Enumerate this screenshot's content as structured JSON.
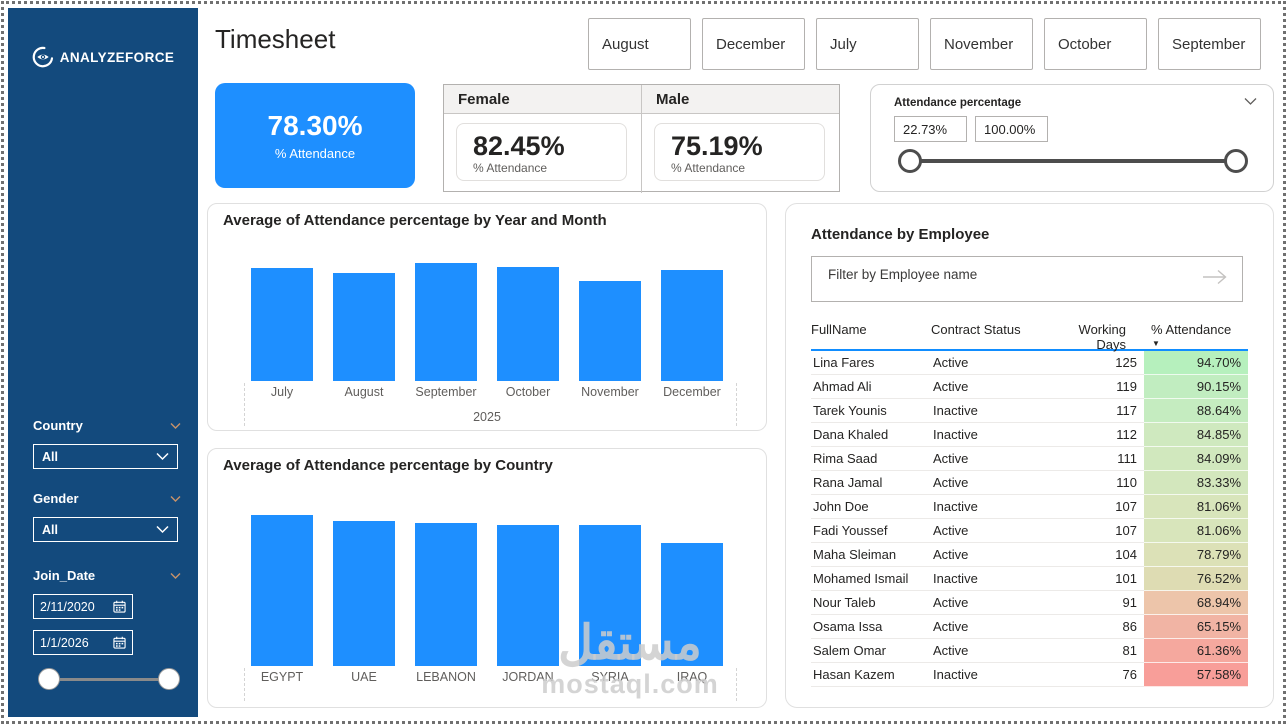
{
  "page": {
    "title": "Timesheet"
  },
  "brand": {
    "name": "ANALYZEFORCE"
  },
  "watermark": {
    "arabic": "مستقل",
    "latin": "mostaql.com"
  },
  "month_buttons": [
    "August",
    "December",
    "July",
    "November",
    "October",
    "September"
  ],
  "kpi": {
    "value": "78.30%",
    "label": "% Attendance"
  },
  "gender_cards": {
    "female": {
      "header": "Female",
      "value": "82.45%",
      "label": "% Attendance"
    },
    "male": {
      "header": "Male",
      "value": "75.19%",
      "label": "% Attendance"
    }
  },
  "attendance_slicer": {
    "title": "Attendance percentage",
    "min_value": "22.73%",
    "max_value": "100.00%"
  },
  "sidebar": {
    "country": {
      "label": "Country",
      "value": "All"
    },
    "gender": {
      "label": "Gender",
      "value": "All"
    },
    "join_date": {
      "label": "Join_Date",
      "start": "2/11/2020",
      "end": "1/1/2026"
    }
  },
  "employee_panel": {
    "title": "Attendance by Employee",
    "filter_placeholder": "Filter by Employee name",
    "columns": [
      "FullName",
      "Contract Status",
      "Working Days",
      "% Attendance"
    ],
    "sort_column": "% Attendance",
    "sort_direction": "desc",
    "rows": [
      {
        "name": "Lina Fares",
        "status": "Active",
        "days": "125",
        "attendance": "94.70%",
        "color": "#b6f0bd"
      },
      {
        "name": "Ahmad Ali",
        "status": "Active",
        "days": "119",
        "attendance": "90.15%",
        "color": "#c1edc0"
      },
      {
        "name": "Tarek Younis",
        "status": "Inactive",
        "days": "117",
        "attendance": "88.64%",
        "color": "#c5ecc0"
      },
      {
        "name": "Dana Khaled",
        "status": "Inactive",
        "days": "112",
        "attendance": "84.85%",
        "color": "#cfe9bf"
      },
      {
        "name": "Rima Saad",
        "status": "Active",
        "days": "111",
        "attendance": "84.09%",
        "color": "#d1e8be"
      },
      {
        "name": "Rana Jamal",
        "status": "Active",
        "days": "110",
        "attendance": "83.33%",
        "color": "#d3e7bd"
      },
      {
        "name": "John Doe",
        "status": "Inactive",
        "days": "107",
        "attendance": "81.06%",
        "color": "#d8e5bb"
      },
      {
        "name": "Fadi Youssef",
        "status": "Active",
        "days": "107",
        "attendance": "81.06%",
        "color": "#d8e5bb"
      },
      {
        "name": "Maha Sleiman",
        "status": "Active",
        "days": "104",
        "attendance": "78.79%",
        "color": "#dce1b7"
      },
      {
        "name": "Mohamed Ismail",
        "status": "Inactive",
        "days": "101",
        "attendance": "76.52%",
        "color": "#dedcb3"
      },
      {
        "name": "Nour Taleb",
        "status": "Active",
        "days": "91",
        "attendance": "68.94%",
        "color": "#edc5aa"
      },
      {
        "name": "Osama Issa",
        "status": "Active",
        "days": "86",
        "attendance": "65.15%",
        "color": "#f1b4a4"
      },
      {
        "name": "Salem Omar",
        "status": "Active",
        "days": "81",
        "attendance": "61.36%",
        "color": "#f5a89e"
      },
      {
        "name": "Hasan Kazem",
        "status": "Inactive",
        "days": "76",
        "attendance": "57.58%",
        "color": "#f89e99"
      }
    ]
  },
  "chart_data": [
    {
      "type": "bar",
      "title": "Average of Attendance percentage by Year and Month",
      "categories": [
        "July",
        "August",
        "September",
        "October",
        "November",
        "December"
      ],
      "values": [
        78.8,
        75.3,
        82.3,
        79.5,
        69.7,
        77.4
      ],
      "x_group_label": "2025",
      "xlabel": "Year and Month",
      "ylabel": "Average of Attendance percentage",
      "ylim": [
        0,
        85
      ],
      "grid": false,
      "legend": false,
      "bar_color": "#1e8fff"
    },
    {
      "type": "bar",
      "title": "Average of Attendance percentage by Country",
      "categories": [
        "EGYPT",
        "UAE",
        "LEBANON",
        "JORDAN",
        "SYRIA",
        "IRAQ"
      ],
      "values": [
        82.0,
        78.8,
        77.7,
        76.7,
        76.5,
        66.8
      ],
      "xlabel": "Country",
      "ylabel": "Average of Attendance percentage",
      "ylim": [
        0,
        85
      ],
      "grid": false,
      "legend": false,
      "bar_color": "#1e8fff"
    }
  ],
  "colors": {
    "accent_blue": "#1e8fff",
    "sidebar_blue": "#134a7d",
    "table_header_underline": "#118dff"
  }
}
